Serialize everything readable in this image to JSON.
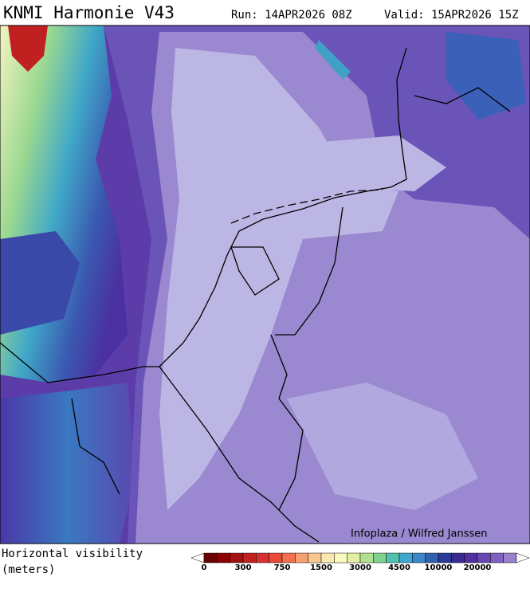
{
  "header": {
    "title": "KNMI Harmonie V43",
    "run": "Run: 14APR2026 08Z",
    "valid": "Valid: 15APR2026 15Z"
  },
  "map": {
    "credit": "Infoplaza / Wilfred Janssen"
  },
  "legend": {
    "label": [
      "Horizontal visibility",
      "(meters)"
    ],
    "ticks": [
      0,
      300,
      750,
      1500,
      3000,
      4500,
      10000,
      20000
    ]
  }
}
